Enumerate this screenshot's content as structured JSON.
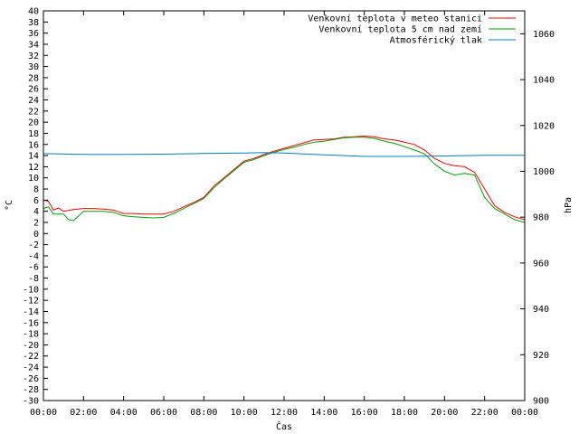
{
  "chart_data": {
    "type": "line",
    "title": "",
    "xlabel": "Čas",
    "ylabel": "°C",
    "y2label": "hPa",
    "x_ticks": [
      "00:00",
      "02:00",
      "04:00",
      "06:00",
      "08:00",
      "10:00",
      "12:00",
      "14:00",
      "16:00",
      "18:00",
      "20:00",
      "22:00",
      "00:00"
    ],
    "x_hours_range": [
      0,
      24
    ],
    "ylim": [
      -30,
      40
    ],
    "y_step": 2,
    "y2lim": [
      900,
      1070
    ],
    "y2_ticks": [
      900,
      920,
      940,
      960,
      980,
      1000,
      1020,
      1040,
      1060
    ],
    "grid": false,
    "legend_placement": "top-right",
    "colors": {
      "series_air": "#ff0000",
      "series_ground": "#00a000",
      "series_pressure": "#0080c0",
      "axis": "#000000"
    },
    "series": [
      {
        "name": "Venkovní teplota v meteo stanici",
        "axis": "left",
        "x": [
          0,
          0.25,
          0.5,
          0.75,
          1,
          1.5,
          2,
          2.5,
          3,
          3.5,
          4,
          4.5,
          5,
          5.5,
          6,
          6.5,
          7,
          7.5,
          8,
          8.5,
          9,
          9.5,
          10,
          10.5,
          11,
          11.5,
          12,
          12.5,
          13,
          13.5,
          14,
          14.5,
          15,
          15.5,
          16,
          16.5,
          17,
          17.5,
          18,
          18.5,
          19,
          19.5,
          20,
          20.5,
          21,
          21.5,
          22,
          22.5,
          23,
          23.5,
          24
        ],
        "values": [
          6.0,
          5.8,
          4.2,
          4.6,
          4.0,
          4.3,
          4.5,
          4.5,
          4.4,
          4.2,
          3.6,
          3.6,
          3.5,
          3.5,
          3.5,
          4.0,
          4.8,
          5.6,
          6.5,
          8.5,
          10.0,
          11.5,
          13.0,
          13.5,
          14.2,
          14.8,
          15.3,
          15.8,
          16.3,
          16.8,
          16.9,
          17.0,
          17.3,
          17.4,
          17.5,
          17.4,
          17.0,
          16.8,
          16.4,
          16.0,
          15.0,
          13.5,
          12.6,
          12.2,
          12.0,
          11.0,
          8.0,
          5.0,
          3.8,
          3.0,
          2.5
        ]
      },
      {
        "name": "Venkovní teplota 5 cm nad zemí",
        "axis": "left",
        "x": [
          0,
          0.25,
          0.5,
          0.75,
          1,
          1.25,
          1.5,
          2,
          2.5,
          3,
          3.5,
          4,
          4.5,
          5,
          5.5,
          6,
          6.5,
          7,
          7.5,
          8,
          8.5,
          9,
          9.5,
          10,
          10.5,
          11,
          11.5,
          12,
          12.5,
          13,
          13.5,
          14,
          14.5,
          15,
          15.5,
          16,
          16.5,
          17,
          17.5,
          18,
          18.5,
          19,
          19.5,
          20,
          20.5,
          21,
          21.5,
          22,
          22.5,
          23,
          23.5,
          24
        ],
        "values": [
          4.5,
          4.8,
          3.5,
          3.5,
          3.5,
          2.5,
          2.3,
          4.0,
          4.0,
          4.0,
          3.8,
          3.2,
          3.0,
          2.9,
          2.8,
          2.9,
          3.6,
          4.5,
          5.4,
          6.3,
          8.2,
          9.8,
          11.3,
          12.8,
          13.3,
          14.0,
          14.6,
          15.1,
          15.5,
          16.0,
          16.4,
          16.6,
          16.9,
          17.2,
          17.3,
          17.3,
          17.1,
          16.6,
          16.2,
          15.6,
          15.0,
          14.3,
          12.5,
          11.2,
          10.5,
          10.8,
          10.5,
          6.5,
          4.5,
          3.5,
          2.5,
          2.0
        ]
      },
      {
        "name": "Atmosférický tlak",
        "axis": "right",
        "x": [
          0,
          2,
          4,
          6,
          8,
          10,
          11,
          12,
          14,
          16,
          18,
          20,
          22,
          24
        ],
        "values": [
          1007.7,
          1007.4,
          1007.4,
          1007.5,
          1007.8,
          1008.0,
          1008.2,
          1008.0,
          1007.2,
          1006.5,
          1006.5,
          1006.7,
          1007.0,
          1007.0
        ]
      }
    ]
  }
}
